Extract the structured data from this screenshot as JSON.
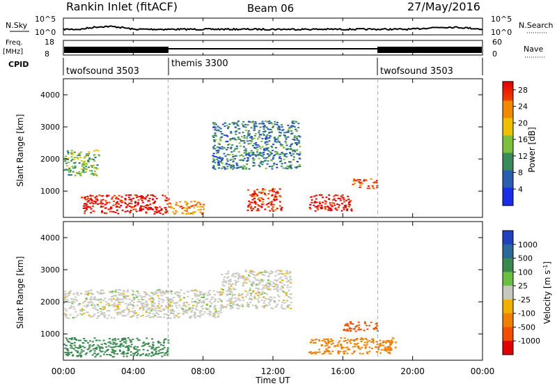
{
  "header": {
    "site": "Rankin Inlet (fitACF)",
    "beam": "Beam 06",
    "date": "27/May/2016"
  },
  "top_panels": {
    "nsky_label": "N.Sky",
    "nsky_ticks": [
      "10^5",
      "10^0"
    ],
    "nsearch_label": "N.Search",
    "nsearch_ticks": [
      "10^5",
      "10^0"
    ],
    "freq_label": "Freq.",
    "freq_unit": "[MHz]",
    "freq_ticks": [
      "18",
      "8"
    ],
    "nave_label": "Nave",
    "nave_ticks": [
      "60",
      "0"
    ],
    "cpid_label": "CPID",
    "cpid_segments": [
      {
        "name": "twofsound 3503",
        "start_hr": 0,
        "end_hr": 6
      },
      {
        "name": "themis 3300",
        "start_hr": 6,
        "end_hr": 18
      },
      {
        "name": "twofsound 3503",
        "start_hr": 18,
        "end_hr": 24
      }
    ]
  },
  "chart_data": [
    {
      "type": "heatmap",
      "panel": "power",
      "ylabel": "Slant Range [km]",
      "y_ticks": [
        "1000",
        "2000",
        "3000",
        "4000"
      ],
      "ylim": [
        180,
        4500
      ],
      "x_ticks": [
        "00:00",
        "04:00",
        "08:00",
        "12:00",
        "16:00",
        "20:00",
        "00:00"
      ],
      "xlim_hours": [
        0,
        24
      ],
      "colorbar": {
        "label": "Power [dB]",
        "ticks": [
          "4",
          "8",
          "12",
          "16",
          "20",
          "24",
          "28"
        ],
        "range": [
          0,
          30
        ],
        "colors": [
          "#1a2ee8",
          "#2a5fb0",
          "#3a8a5c",
          "#7dc040",
          "#f0c000",
          "#f08a00",
          "#f04000",
          "#e00000"
        ]
      },
      "features": [
        {
          "hours": [
            1,
            6
          ],
          "range_km": [
            300,
            900
          ],
          "level_db": 28
        },
        {
          "hours": [
            6,
            8
          ],
          "range_km": [
            300,
            700
          ],
          "level_db": 20
        },
        {
          "hours": [
            10.5,
            12.5
          ],
          "range_km": [
            400,
            1100
          ],
          "level_db": 26
        },
        {
          "hours": [
            14,
            16.5
          ],
          "range_km": [
            400,
            900
          ],
          "level_db": 28
        },
        {
          "hours": [
            16.5,
            18
          ],
          "range_km": [
            1100,
            1400
          ],
          "level_db": 24
        },
        {
          "hours": [
            0,
            2
          ],
          "range_km": [
            1500,
            2300
          ],
          "level_db": 12
        },
        {
          "hours": [
            8.5,
            13.5
          ],
          "range_km": [
            1700,
            3200
          ],
          "level_db": 8
        }
      ]
    },
    {
      "type": "heatmap",
      "panel": "velocity",
      "ylabel": "Slant Range [km]",
      "y_ticks": [
        "1000",
        "2000",
        "3000",
        "4000"
      ],
      "ylim": [
        180,
        4500
      ],
      "x_ticks": [
        "00:00",
        "04:00",
        "08:00",
        "12:00",
        "16:00",
        "20:00",
        "00:00"
      ],
      "xlim_hours": [
        0,
        24
      ],
      "xlabel": "Time UT",
      "colorbar": {
        "label": "Velocity [m s^-1]",
        "ticks": [
          "1000",
          "500",
          "100",
          "25",
          "-25",
          "-100",
          "-500",
          "-1000"
        ],
        "colors": [
          "#2040c0",
          "#2a6a9a",
          "#3a8a50",
          "#6ac040",
          "#c8c8c0",
          "#f0b000",
          "#f08000",
          "#f05000",
          "#e00000"
        ]
      },
      "features": [
        {
          "hours": [
            0,
            6
          ],
          "range_km": [
            300,
            900
          ],
          "velocity": 200
        },
        {
          "hours": [
            0,
            9
          ],
          "range_km": [
            1500,
            2400
          ],
          "velocity": 0
        },
        {
          "hours": [
            9,
            13
          ],
          "range_km": [
            1800,
            3000
          ],
          "velocity": 0
        },
        {
          "hours": [
            14,
            19
          ],
          "range_km": [
            400,
            900
          ],
          "velocity": -300
        },
        {
          "hours": [
            16,
            18
          ],
          "range_km": [
            1100,
            1400
          ],
          "velocity": -800
        }
      ]
    }
  ]
}
